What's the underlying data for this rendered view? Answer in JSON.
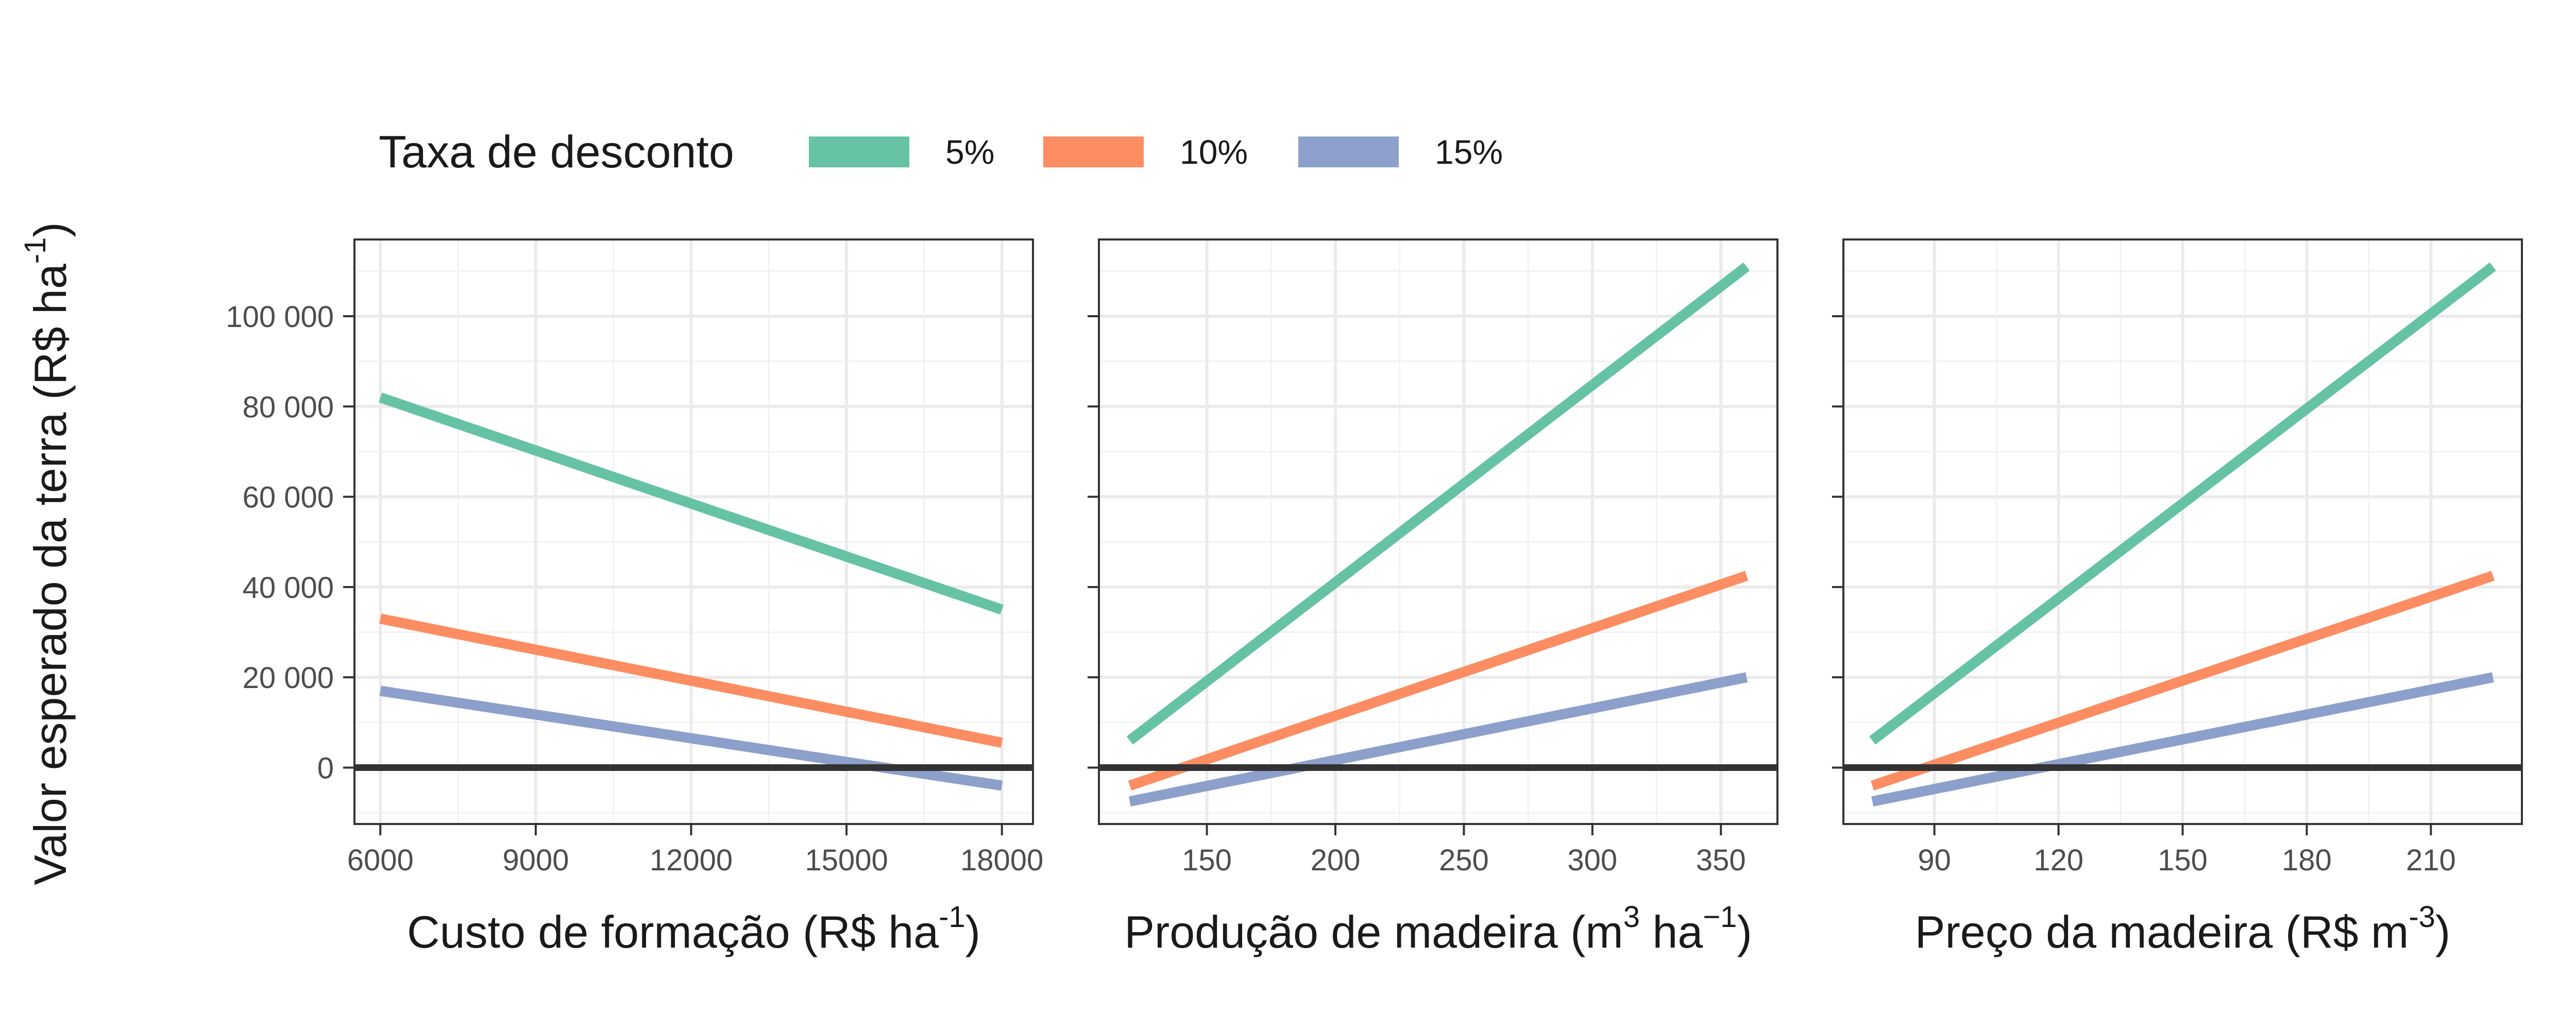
{
  "figure": {
    "ylabel_main": "Valor esperado da terra (R$ ha",
    "ylabel_sup": "-1",
    "ylabel_close": ")"
  },
  "legend": {
    "title": "Taxa de desconto",
    "position": "top",
    "items": [
      {
        "label": "5%",
        "color": "#66C2A5"
      },
      {
        "label": "10%",
        "color": "#FC8D62"
      },
      {
        "label": "15%",
        "color": "#8DA0CB"
      }
    ]
  },
  "chart_data": [
    {
      "type": "line",
      "xlabel_main": "Custo de formação (R$ ha",
      "xlabel_sup": "-1",
      "xlabel_close": ")",
      "xlim": [
        5500,
        18600
      ],
      "ylim": [
        -12500,
        117000
      ],
      "xticks": [
        6000,
        9000,
        12000,
        15000,
        18000
      ],
      "xtick_labels": [
        "6000",
        "9000",
        "12000",
        "15000",
        "18000"
      ],
      "yticks": [
        0,
        20000,
        40000,
        60000,
        80000,
        100000
      ],
      "ytick_labels": [
        "0",
        "20 000",
        "40 000",
        "60 000",
        "80 000",
        "100 000"
      ],
      "zero_line": 0,
      "grid": true,
      "series": [
        {
          "name": "5%",
          "x": [
            6000,
            18000
          ],
          "y": [
            82000,
            35000
          ]
        },
        {
          "name": "10%",
          "x": [
            6000,
            18000
          ],
          "y": [
            33000,
            5500
          ]
        },
        {
          "name": "15%",
          "x": [
            6000,
            18000
          ],
          "y": [
            17000,
            -4000
          ]
        }
      ]
    },
    {
      "type": "line",
      "xlabel_main": "Produção de madeira (m",
      "xlabel_sup": "3",
      "xlabel_mid": " ha",
      "xlabel_sup2": "−1",
      "xlabel_close": ")",
      "xlim": [
        108,
        372
      ],
      "ylim": [
        -12500,
        117000
      ],
      "xticks": [
        150,
        200,
        250,
        300,
        350
      ],
      "xtick_labels": [
        "150",
        "200",
        "250",
        "300",
        "350"
      ],
      "yticks": [
        0,
        20000,
        40000,
        60000,
        80000,
        100000
      ],
      "ytick_labels": [],
      "zero_line": 0,
      "grid": true,
      "series": [
        {
          "name": "5%",
          "x": [
            120,
            360
          ],
          "y": [
            6000,
            111000
          ]
        },
        {
          "name": "10%",
          "x": [
            120,
            360
          ],
          "y": [
            -4000,
            42500
          ]
        },
        {
          "name": "15%",
          "x": [
            120,
            360
          ],
          "y": [
            -7500,
            20000
          ]
        }
      ]
    },
    {
      "type": "line",
      "xlabel_main": "Preço da madeira (R$ m",
      "xlabel_sup": "-3",
      "xlabel_close": ")",
      "xlim": [
        68,
        232
      ],
      "ylim": [
        -12500,
        117000
      ],
      "xticks": [
        90,
        120,
        150,
        180,
        210
      ],
      "xtick_labels": [
        "90",
        "120",
        "150",
        "180",
        "210"
      ],
      "yticks": [
        0,
        20000,
        40000,
        60000,
        80000,
        100000
      ],
      "ytick_labels": [],
      "zero_line": 0,
      "grid": true,
      "series": [
        {
          "name": "5%",
          "x": [
            75,
            225
          ],
          "y": [
            6000,
            111000
          ]
        },
        {
          "name": "10%",
          "x": [
            75,
            225
          ],
          "y": [
            -4000,
            42500
          ]
        },
        {
          "name": "15%",
          "x": [
            75,
            225
          ],
          "y": [
            -7500,
            20000
          ]
        }
      ]
    }
  ]
}
